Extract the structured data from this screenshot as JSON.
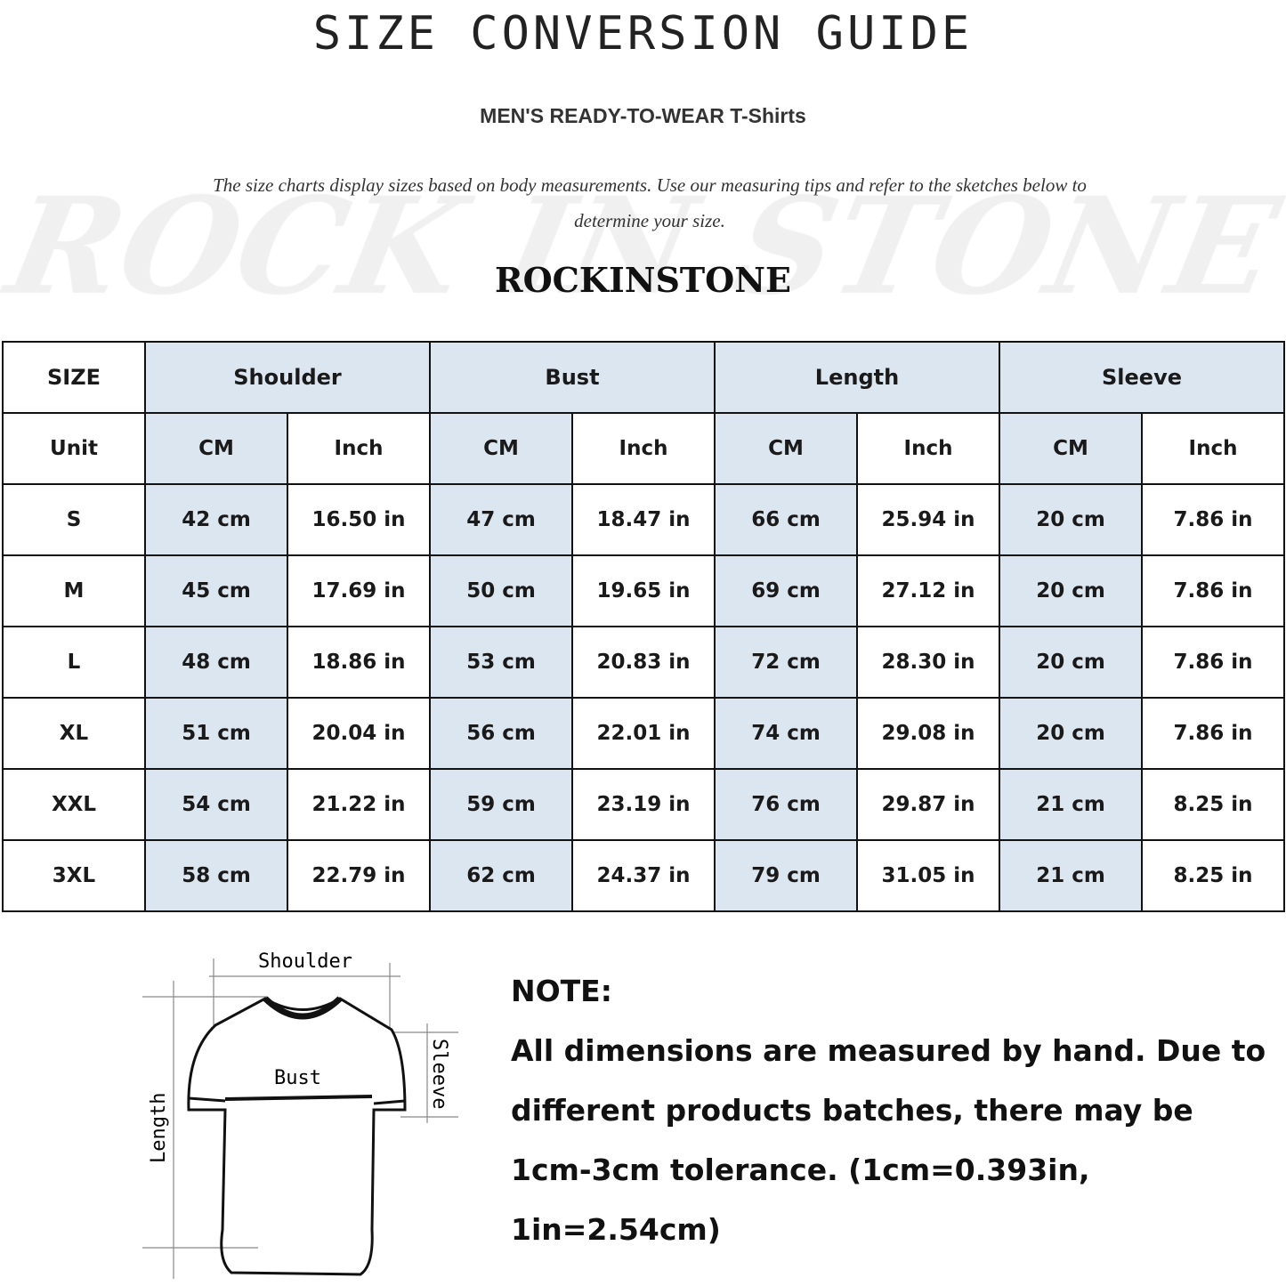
{
  "title": "SIZE CONVERSION GUIDE",
  "subtitle": "MEN'S READY-TO-WEAR T-Shirts",
  "description": "The size charts display sizes based on body measurements. Use our measuring tips and refer to the sketches below to determine your size.",
  "watermark": "ROCK IN STONE",
  "brand": "ROCKINSTONE",
  "table": {
    "size_header": "SIZE",
    "groups": [
      "Shoulder",
      "Bust",
      "Length",
      "Sleeve"
    ],
    "unit_label": "Unit",
    "units": [
      "CM",
      "Inch",
      "CM",
      "Inch",
      "CM",
      "Inch",
      "CM",
      "Inch"
    ],
    "rows": [
      {
        "size": "S",
        "values": [
          "42 cm",
          "16.50 in",
          "47 cm",
          "18.47  in",
          "66 cm",
          "25.94  in",
          "20 cm",
          "7.86  in"
        ]
      },
      {
        "size": "M",
        "values": [
          "45 cm",
          "17.69  in",
          "50 cm",
          "19.65  in",
          "69 cm",
          "27.12  in",
          "20 cm",
          "7.86  in"
        ]
      },
      {
        "size": "L",
        "values": [
          "48 cm",
          "18.86  in",
          "53 cm",
          "20.83  in",
          "72 cm",
          "28.30  in",
          "20 cm",
          "7.86  in"
        ]
      },
      {
        "size": "XL",
        "values": [
          "51 cm",
          "20.04  in",
          "56 cm",
          "22.01  in",
          "74 cm",
          "29.08  in",
          "20 cm",
          "7.86  in"
        ]
      },
      {
        "size": "XXL",
        "values": [
          "54 cm",
          "21.22  in",
          "59 cm",
          "23.19  in",
          "76 cm",
          "29.87  in",
          "21 cm",
          "8.25  in"
        ]
      },
      {
        "size": "3XL",
        "values": [
          "58 cm",
          "22.79  in",
          "62 cm",
          "24.37  in",
          "79 cm",
          "31.05  in",
          "21 cm",
          "8.25  in"
        ]
      }
    ],
    "highlight_color": "#dce6f1"
  },
  "figure": {
    "labels": {
      "shoulder": "Shoulder",
      "bust": "Bust",
      "sleeve": "Sleeve",
      "length": "Length"
    }
  },
  "note": {
    "heading": "NOTE:",
    "text": "All dimensions are measured by hand. Due to different products batches, there may be 1cm-3cm tolerance. (1cm=0.393in, 1in=2.54cm)"
  }
}
